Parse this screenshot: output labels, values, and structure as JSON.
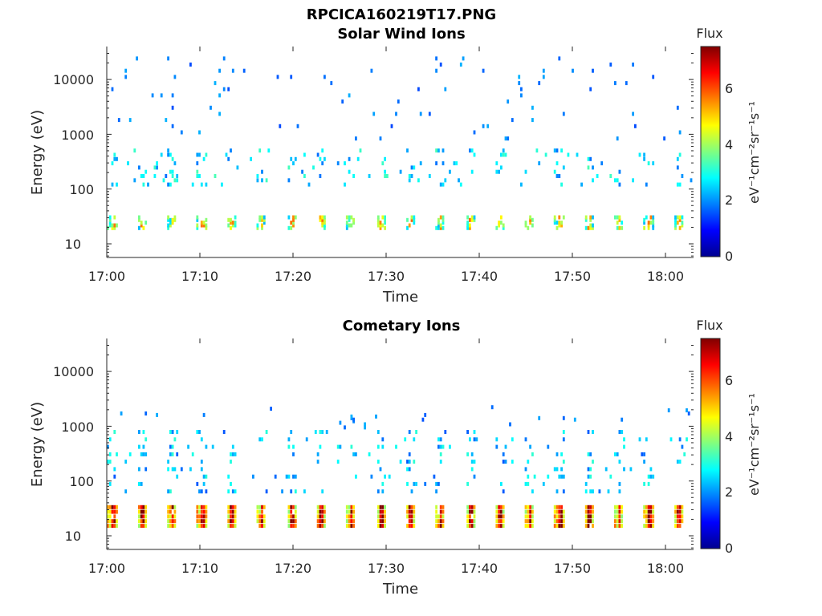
{
  "figure": {
    "title": "RPCICA160219T17.PNG"
  },
  "panels": [
    {
      "title": "Solar Wind Ions",
      "xlabel": "Time",
      "ylabel": "Energy (eV)",
      "xticks": [
        "17:00",
        "17:10",
        "17:20",
        "17:30",
        "17:40",
        "17:50",
        "18:00"
      ],
      "yticks": [
        "10",
        "100",
        "1000",
        "10000"
      ],
      "colorbar_title": "Flux",
      "colorbar_label": "eV⁻¹cm⁻²sr⁻¹s⁻¹",
      "colorbar_ticks": [
        "0",
        "2",
        "4",
        "6"
      ]
    },
    {
      "title": "Cometary Ions",
      "xlabel": "Time",
      "ylabel": "Energy (eV)",
      "xticks": [
        "17:00",
        "17:10",
        "17:20",
        "17:30",
        "17:40",
        "17:50",
        "18:00"
      ],
      "yticks": [
        "10",
        "100",
        "1000",
        "10000"
      ],
      "colorbar_title": "Flux",
      "colorbar_label": "eV⁻¹cm⁻²sr⁻¹s⁻¹",
      "colorbar_ticks": [
        "0",
        "2",
        "4",
        "6"
      ]
    }
  ],
  "chart_data": [
    {
      "type": "heatmap",
      "title": "Solar Wind Ions",
      "xlabel": "Time",
      "ylabel": "Energy (eV)",
      "x_range": [
        "17:00",
        "18:03"
      ],
      "y_scale": "log",
      "y_range": [
        6,
        45000
      ],
      "colorbar": {
        "title": "Flux",
        "label": "eV⁻¹cm⁻²sr⁻¹s⁻¹",
        "range": [
          0,
          7.3
        ],
        "colormap": "jet"
      },
      "features": [
        {
          "band": "low",
          "energy_range_eV": [
            20,
            35
          ],
          "flux_typical": 3,
          "flux_peak": 4.5,
          "period_min": 3.2
        },
        {
          "band": "mid",
          "energy_range_eV": [
            120,
            600
          ],
          "flux_typical": 2.5,
          "flux_peak": 4.0
        },
        {
          "band": "sparse",
          "energy_range_eV": [
            800,
            30000
          ],
          "flux_typical": 1.8
        }
      ]
    },
    {
      "type": "heatmap",
      "title": "Cometary Ions",
      "xlabel": "Time",
      "ylabel": "Energy (eV)",
      "x_range": [
        "17:00",
        "18:03"
      ],
      "y_scale": "log",
      "y_range": [
        6,
        45000
      ],
      "colorbar": {
        "title": "Flux",
        "label": "eV⁻¹cm⁻²sr⁻¹s⁻¹",
        "range": [
          0,
          7.3
        ],
        "colormap": "jet"
      },
      "features": [
        {
          "band": "low",
          "energy_range_eV": [
            15,
            40
          ],
          "flux_typical": 4.5,
          "flux_peak": 6.5,
          "period_min": 3.2
        },
        {
          "band": "mid",
          "energy_range_eV": [
            60,
            1000
          ],
          "flux_typical": 2.3,
          "flux_peak": 3.5
        },
        {
          "band": "sparse",
          "energy_range_eV": [
            1000,
            2500
          ],
          "flux_typical": 1.8
        }
      ]
    }
  ]
}
